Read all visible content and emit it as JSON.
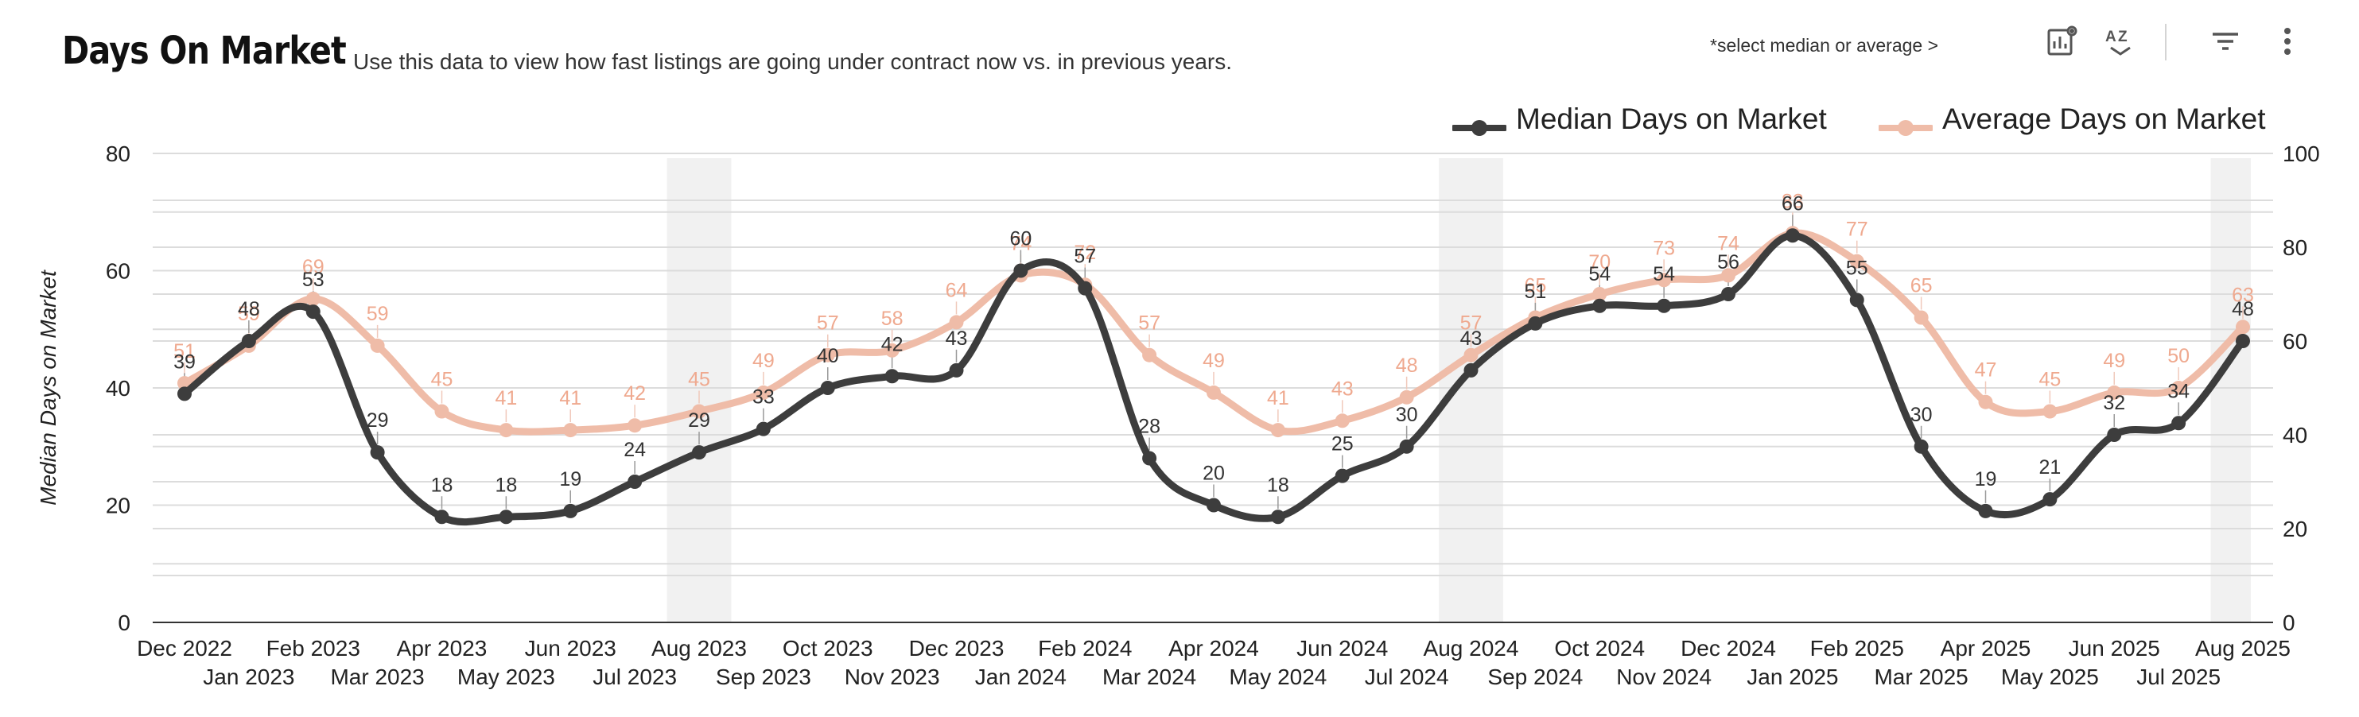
{
  "header": {
    "title": "Days On Market",
    "subtitle": "Use this data to view how fast listings are going under contract now vs. in previous years.",
    "hint": "*select median or average >"
  },
  "toolbar": {
    "icons": [
      "chart-settings-icon",
      "sort-az-icon",
      "filter-icon",
      "more-vert-icon"
    ]
  },
  "colors": {
    "median": "#3d3d3d",
    "average": "#efbca8",
    "average_label": "#efa98f",
    "grid": "#dcdcdc",
    "band": "#ececec"
  },
  "chart_data": {
    "type": "line",
    "title": "Days On Market",
    "categories": [
      "Dec 2022",
      "Jan 2023",
      "Feb 2023",
      "Mar 2023",
      "Apr 2023",
      "May 2023",
      "Jun 2023",
      "Jul 2023",
      "Aug 2023",
      "Sep 2023",
      "Oct 2023",
      "Nov 2023",
      "Dec 2023",
      "Jan 2024",
      "Feb 2024",
      "Mar 2024",
      "Apr 2024",
      "May 2024",
      "Jun 2024",
      "Jul 2024",
      "Aug 2024",
      "Sep 2024",
      "Oct 2024",
      "Nov 2024",
      "Dec 2024",
      "Jan 2025",
      "Feb 2025",
      "Mar 2025",
      "Apr 2025",
      "May 2025",
      "Jun 2025",
      "Jul 2025",
      "Aug 2025"
    ],
    "series": [
      {
        "name": "Median Days on Market",
        "axis": "left",
        "values": [
          39,
          48,
          53,
          29,
          18,
          18,
          19,
          24,
          29,
          33,
          40,
          42,
          43,
          60,
          57,
          28,
          20,
          18,
          25,
          30,
          43,
          51,
          54,
          54,
          56,
          66,
          55,
          30,
          19,
          21,
          32,
          34,
          48
        ]
      },
      {
        "name": "Average Days on Market",
        "axis": "right",
        "values": [
          51,
          59,
          69,
          59,
          45,
          41,
          41,
          42,
          45,
          49,
          57,
          58,
          64,
          74,
          72,
          57,
          49,
          41,
          43,
          48,
          57,
          65,
          70,
          73,
          74,
          83,
          77,
          65,
          47,
          45,
          49,
          50,
          63
        ]
      }
    ],
    "ylabel": "Median Days on Market",
    "ylim": [
      0,
      80
    ],
    "yticks": [
      0,
      20,
      40,
      60,
      80
    ],
    "y2lim": [
      0,
      100
    ],
    "y2ticks": [
      0,
      20,
      40,
      60,
      80,
      100
    ],
    "highlighted_months": [
      "Aug 2023",
      "Aug 2024",
      "Aug 2025"
    ],
    "legend_position": "top-right",
    "grid": true
  }
}
